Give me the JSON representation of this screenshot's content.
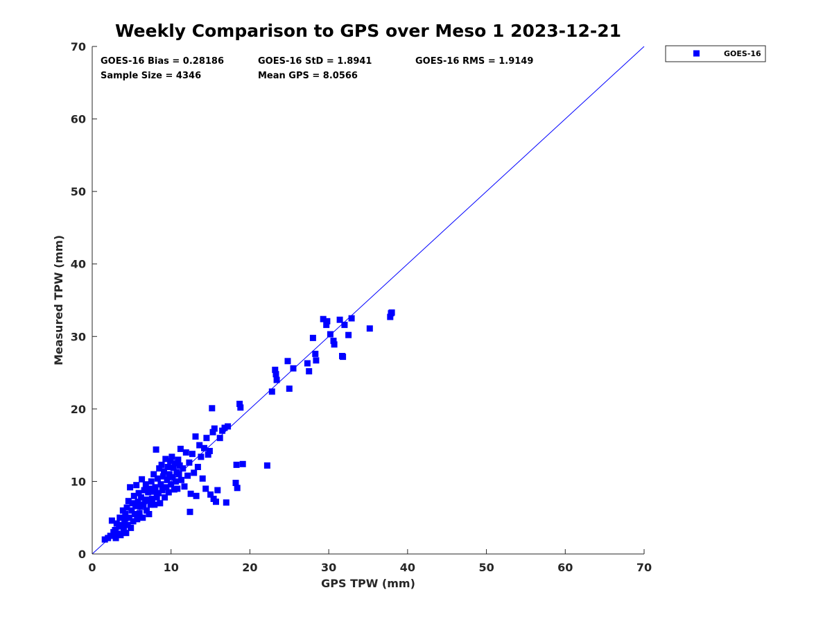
{
  "chart_data": {
    "type": "scatter",
    "title": "Weekly Comparison to GPS over Meso 1 2023-12-21",
    "xlabel": "GPS TPW (mm)",
    "ylabel": "Measured TPW (mm)",
    "xlim": [
      0,
      70
    ],
    "ylim": [
      0,
      70
    ],
    "x_ticks": [
      "0",
      "10",
      "20",
      "30",
      "40",
      "50",
      "60",
      "70"
    ],
    "y_ticks": [
      "0",
      "10",
      "20",
      "30",
      "40",
      "50",
      "60",
      "70"
    ],
    "x_tick_values": [
      0,
      10,
      20,
      30,
      40,
      50,
      60,
      70
    ],
    "y_tick_values": [
      0,
      10,
      20,
      30,
      40,
      50,
      60,
      70
    ],
    "grid": false,
    "legend": {
      "placement": "outside-top-right",
      "entries": [
        "GOES-16"
      ]
    },
    "stats": {
      "bias": "GOES-16 Bias = 0.28186",
      "std": "GOES-16 StD = 1.8941",
      "rms": "GOES-16 RMS = 1.9149",
      "sample_size": "Sample Size = 4346",
      "mean_gps": "Mean GPS = 8.0566"
    },
    "reference_line": {
      "name": "one-to-one",
      "x": [
        0,
        70
      ],
      "y": [
        0,
        70
      ]
    },
    "series": [
      {
        "name": "GOES-16",
        "color": "#0000ff",
        "marker": "square",
        "points": [
          [
            1.6,
            2.0
          ],
          [
            2.0,
            2.2
          ],
          [
            2.3,
            2.5
          ],
          [
            2.5,
            4.6
          ],
          [
            2.7,
            3.0
          ],
          [
            2.9,
            3.3
          ],
          [
            3.0,
            2.2
          ],
          [
            3.1,
            4.2
          ],
          [
            3.2,
            2.8
          ],
          [
            3.4,
            3.8
          ],
          [
            3.5,
            5.0
          ],
          [
            3.6,
            2.6
          ],
          [
            3.8,
            4.0
          ],
          [
            3.9,
            6.0
          ],
          [
            4.0,
            3.4
          ],
          [
            4.1,
            4.8
          ],
          [
            4.2,
            5.5
          ],
          [
            4.3,
            2.9
          ],
          [
            4.4,
            6.4
          ],
          [
            4.5,
            4.0
          ],
          [
            4.6,
            7.3
          ],
          [
            4.7,
            5.0
          ],
          [
            4.8,
            9.2
          ],
          [
            4.9,
            3.6
          ],
          [
            5.0,
            6.0
          ],
          [
            5.1,
            7.0
          ],
          [
            5.2,
            4.5
          ],
          [
            5.3,
            8.0
          ],
          [
            5.4,
            5.5
          ],
          [
            5.5,
            6.6
          ],
          [
            5.6,
            9.5
          ],
          [
            5.7,
            4.8
          ],
          [
            5.8,
            7.2
          ],
          [
            5.9,
            8.4
          ],
          [
            6.0,
            5.6
          ],
          [
            6.1,
            6.5
          ],
          [
            6.2,
            7.8
          ],
          [
            6.3,
            10.3
          ],
          [
            6.4,
            5.0
          ],
          [
            6.5,
            6.8
          ],
          [
            6.6,
            8.8
          ],
          [
            6.7,
            7.4
          ],
          [
            6.8,
            9.6
          ],
          [
            6.9,
            6.0
          ],
          [
            7.0,
            7.5
          ],
          [
            7.1,
            8.5
          ],
          [
            7.2,
            5.5
          ],
          [
            7.3,
            9.0
          ],
          [
            7.4,
            6.8
          ],
          [
            7.5,
            10.0
          ],
          [
            7.6,
            7.6
          ],
          [
            7.7,
            8.6
          ],
          [
            7.8,
            11.0
          ],
          [
            7.9,
            6.8
          ],
          [
            8.0,
            9.2
          ],
          [
            8.1,
            14.4
          ],
          [
            8.2,
            7.8
          ],
          [
            8.3,
            10.4
          ],
          [
            8.4,
            8.4
          ],
          [
            8.5,
            11.8
          ],
          [
            8.6,
            7.0
          ],
          [
            8.7,
            9.6
          ],
          [
            8.8,
            12.3
          ],
          [
            8.9,
            8.8
          ],
          [
            9.0,
            10.7
          ],
          [
            9.1,
            11.4
          ],
          [
            9.2,
            7.8
          ],
          [
            9.3,
            13.1
          ],
          [
            9.4,
            9.2
          ],
          [
            9.5,
            10.2
          ],
          [
            9.6,
            12.0
          ],
          [
            9.7,
            8.5
          ],
          [
            9.8,
            11.0
          ],
          [
            9.9,
            12.8
          ],
          [
            10.0,
            9.6
          ],
          [
            10.1,
            13.4
          ],
          [
            10.2,
            10.6
          ],
          [
            10.3,
            11.9
          ],
          [
            10.4,
            8.9
          ],
          [
            10.5,
            12.5
          ],
          [
            10.6,
            10.0
          ],
          [
            10.7,
            11.3
          ],
          [
            10.8,
            9.0
          ],
          [
            10.9,
            13.0
          ],
          [
            11.0,
            11.0
          ],
          [
            11.1,
            12.2
          ],
          [
            11.2,
            14.5
          ],
          [
            11.3,
            10.2
          ],
          [
            11.5,
            11.8
          ],
          [
            11.7,
            9.3
          ],
          [
            11.9,
            14.0
          ],
          [
            12.1,
            10.8
          ],
          [
            12.3,
            12.6
          ],
          [
            12.4,
            5.8
          ],
          [
            12.5,
            8.3
          ],
          [
            12.7,
            13.8
          ],
          [
            12.9,
            11.2
          ],
          [
            13.1,
            16.2
          ],
          [
            13.2,
            8.0
          ],
          [
            13.4,
            12.0
          ],
          [
            13.6,
            15.0
          ],
          [
            13.8,
            13.4
          ],
          [
            14.0,
            10.4
          ],
          [
            14.2,
            14.6
          ],
          [
            14.4,
            9.0
          ],
          [
            14.5,
            16.0
          ],
          [
            14.7,
            13.7
          ],
          [
            14.9,
            14.2
          ],
          [
            15.0,
            8.2
          ],
          [
            15.2,
            20.1
          ],
          [
            15.3,
            16.8
          ],
          [
            15.4,
            7.6
          ],
          [
            15.5,
            17.3
          ],
          [
            15.7,
            7.2
          ],
          [
            15.9,
            8.8
          ],
          [
            16.2,
            16.0
          ],
          [
            16.5,
            17.0
          ],
          [
            16.8,
            17.4
          ],
          [
            17.0,
            7.1
          ],
          [
            17.2,
            17.6
          ],
          [
            18.2,
            9.8
          ],
          [
            18.3,
            12.3
          ],
          [
            18.4,
            9.1
          ],
          [
            18.7,
            20.7
          ],
          [
            18.8,
            20.2
          ],
          [
            19.1,
            12.4
          ],
          [
            22.2,
            12.2
          ],
          [
            22.8,
            22.4
          ],
          [
            23.2,
            25.4
          ],
          [
            23.3,
            24.8
          ],
          [
            23.4,
            24.0
          ],
          [
            24.8,
            26.6
          ],
          [
            25.0,
            22.8
          ],
          [
            25.5,
            25.6
          ],
          [
            27.3,
            26.3
          ],
          [
            27.5,
            25.2
          ],
          [
            28.0,
            29.8
          ],
          [
            28.3,
            27.6
          ],
          [
            28.4,
            26.7
          ],
          [
            29.3,
            32.4
          ],
          [
            29.7,
            31.6
          ],
          [
            29.8,
            32.1
          ],
          [
            30.2,
            30.3
          ],
          [
            30.6,
            29.4
          ],
          [
            30.7,
            28.9
          ],
          [
            31.4,
            32.3
          ],
          [
            31.7,
            27.3
          ],
          [
            31.8,
            27.2
          ],
          [
            32.0,
            31.6
          ],
          [
            32.5,
            30.2
          ],
          [
            32.9,
            32.5
          ],
          [
            35.2,
            31.1
          ],
          [
            37.8,
            32.7
          ],
          [
            37.9,
            33.2
          ],
          [
            38.0,
            33.3
          ]
        ]
      }
    ]
  }
}
